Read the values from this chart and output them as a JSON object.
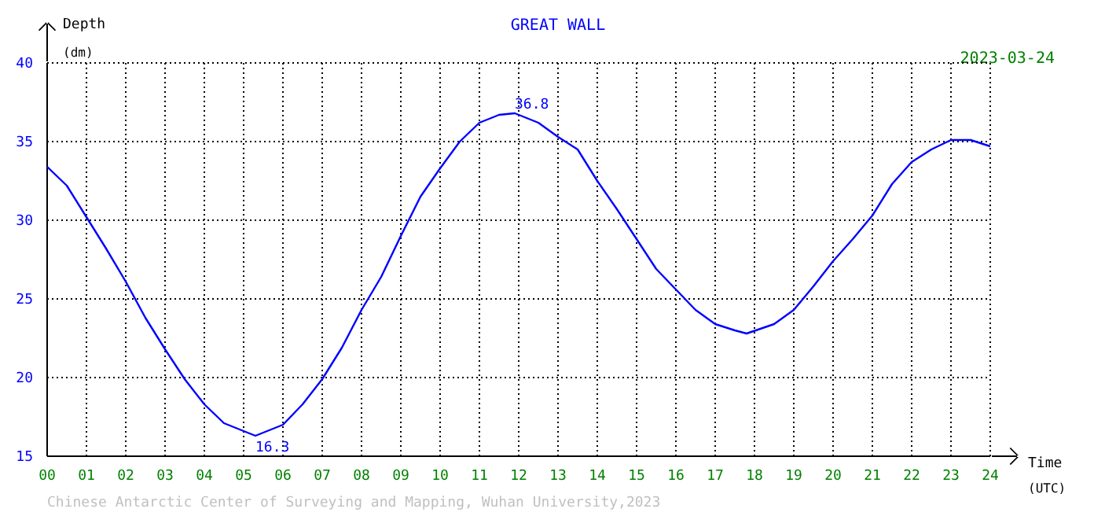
{
  "chart_data": {
    "type": "line",
    "title": "GREAT WALL",
    "subtitle": "2023-03-24",
    "xlabel": "Time (UTC)",
    "ylabel": "Depth (dm)",
    "x": [
      0,
      0.5,
      1,
      1.5,
      2,
      2.5,
      3,
      3.5,
      4,
      4.5,
      5,
      5.3,
      6,
      6.5,
      7,
      7.5,
      8,
      8.5,
      9,
      9.5,
      10,
      10.5,
      11,
      11.5,
      11.9,
      12.5,
      13,
      13.5,
      14,
      14.5,
      15,
      15.5,
      16,
      16.5,
      17,
      17.5,
      17.8,
      18.5,
      19,
      19.5,
      20,
      20.5,
      21,
      21.5,
      22,
      22.5,
      23,
      23.5,
      24
    ],
    "series": [
      {
        "color": "#0000ff",
        "values": [
          33.4,
          32.2,
          30.2,
          28.2,
          26.1,
          23.8,
          21.8,
          19.9,
          18.3,
          17.1,
          16.6,
          16.3,
          17.0,
          18.3,
          19.9,
          21.9,
          24.3,
          26.4,
          29.0,
          31.5,
          33.3,
          35.0,
          36.2,
          36.7,
          36.8,
          36.2,
          35.3,
          34.5,
          32.5,
          30.7,
          28.8,
          26.9,
          25.6,
          24.3,
          23.4,
          23.0,
          22.8,
          23.4,
          24.3,
          25.8,
          27.4,
          28.8,
          30.3,
          32.3,
          33.7,
          34.5,
          35.1,
          35.1,
          34.7
        ]
      }
    ],
    "xlim": [
      0,
      24
    ],
    "xticks": [
      {
        "value": 0,
        "label": "00"
      },
      {
        "value": 1,
        "label": "01"
      },
      {
        "value": 2,
        "label": "02"
      },
      {
        "value": 3,
        "label": "03"
      },
      {
        "value": 4,
        "label": "04"
      },
      {
        "value": 5,
        "label": "05"
      },
      {
        "value": 6,
        "label": "06"
      },
      {
        "value": 7,
        "label": "07"
      },
      {
        "value": 8,
        "label": "08"
      },
      {
        "value": 9,
        "label": "09"
      },
      {
        "value": 10,
        "label": "10"
      },
      {
        "value": 11,
        "label": "11"
      },
      {
        "value": 12,
        "label": "12"
      },
      {
        "value": 13,
        "label": "13"
      },
      {
        "value": 14,
        "label": "14"
      },
      {
        "value": 15,
        "label": "15"
      },
      {
        "value": 16,
        "label": "16"
      },
      {
        "value": 17,
        "label": "17"
      },
      {
        "value": 18,
        "label": "18"
      },
      {
        "value": 19,
        "label": "19"
      },
      {
        "value": 20,
        "label": "20"
      },
      {
        "value": 21,
        "label": "21"
      },
      {
        "value": 22,
        "label": "22"
      },
      {
        "value": 23,
        "label": "23"
      },
      {
        "value": 24,
        "label": "24"
      }
    ],
    "ylim": [
      15,
      40
    ],
    "yticks": [
      15,
      20,
      25,
      30,
      35,
      40
    ],
    "grid": true,
    "line_style": "solid",
    "marker": "none",
    "annotations": [
      {
        "text": "36.8",
        "x": 11.9,
        "y": 36.8
      },
      {
        "text": "16.3",
        "x": 5.3,
        "y": 16.3
      },
      "Chinese Antarctic Center of Surveying and Mapping, Wuhan University,2023"
    ]
  }
}
